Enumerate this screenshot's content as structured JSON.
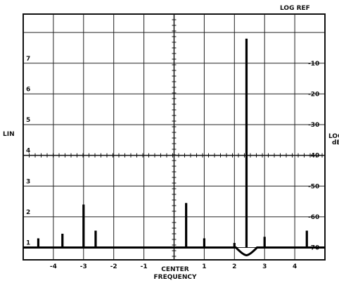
{
  "chart_data": {
    "type": "bar",
    "title": "",
    "annotations": {
      "top_right": "LOG REF",
      "left": "LIN",
      "right": "LOG dB",
      "bottom_line1": "CENTER",
      "bottom_line2": "FREQUENCY"
    },
    "x_axis": {
      "range": [
        -5,
        5
      ],
      "tick_labels": [
        "-4",
        "-3",
        "-2",
        "-1",
        "1",
        "2",
        "3",
        "4"
      ],
      "tick_values": [
        -4,
        -3,
        -2,
        -1,
        1,
        2,
        3,
        4
      ]
    },
    "y_axis_left": {
      "range": [
        0.6,
        8.6
      ],
      "tick_labels": [
        "1",
        "2",
        "3",
        "4",
        "5",
        "6",
        "7"
      ],
      "tick_values": [
        1,
        2,
        3,
        4,
        5,
        6,
        7
      ]
    },
    "y_axis_right": {
      "tick_labels": [
        "-10",
        "-20",
        "-30",
        "-40",
        "-50",
        "-60",
        "-70"
      ],
      "tick_values_lin": [
        7,
        6,
        5,
        4,
        3,
        2,
        1
      ]
    },
    "grid": true,
    "baseline": 1.0,
    "dip": {
      "x": 2.4,
      "y": 0.75
    },
    "spurs": [
      {
        "x": -4.5,
        "y": 1.3
      },
      {
        "x": -3.7,
        "y": 1.45
      },
      {
        "x": -3.0,
        "y": 2.4
      },
      {
        "x": -2.6,
        "y": 1.55
      },
      {
        "x": 0.4,
        "y": 2.45
      },
      {
        "x": 1.0,
        "y": 1.3
      },
      {
        "x": 2.0,
        "y": 1.15
      },
      {
        "x": 2.4,
        "y": 7.8
      },
      {
        "x": 3.0,
        "y": 1.35
      },
      {
        "x": 4.4,
        "y": 1.55
      }
    ]
  }
}
